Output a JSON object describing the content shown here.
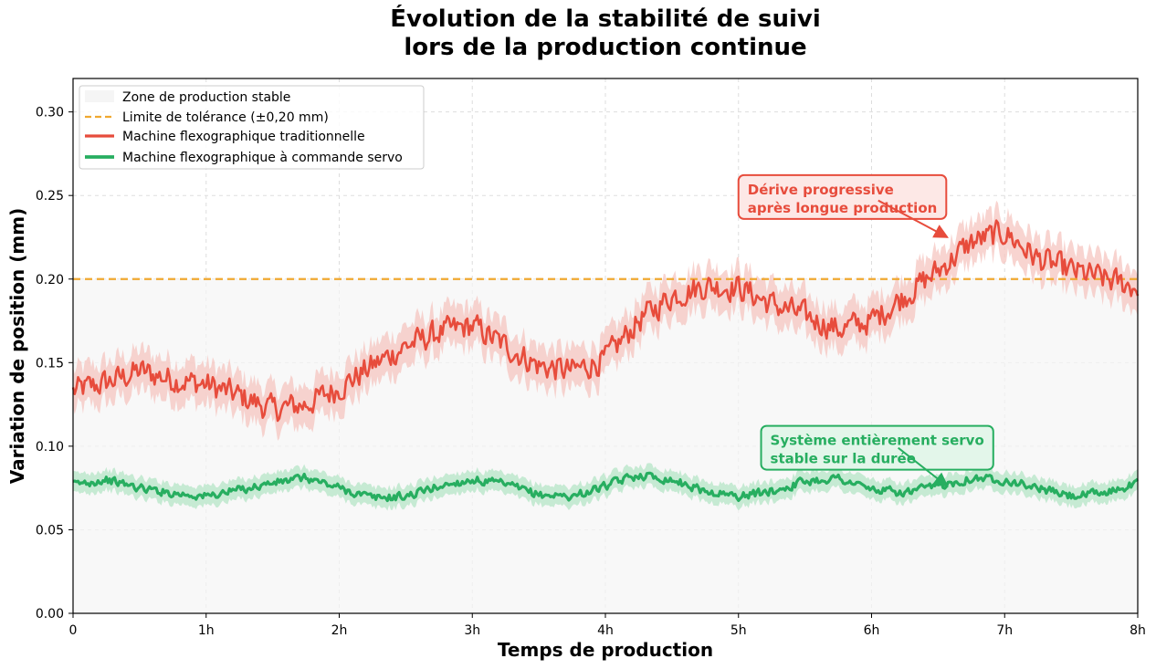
{
  "chart_data": {
    "type": "line",
    "title_lines": [
      "Évolution de la stabilité de suivi",
      "lors de la production continue"
    ],
    "xlabel": "Temps de production",
    "ylabel": "Variation de position (mm)",
    "xlim": [
      0,
      8
    ],
    "ylim": [
      0,
      0.32
    ],
    "x_ticks": [
      {
        "value": 0,
        "label": "0"
      },
      {
        "value": 1,
        "label": "1h"
      },
      {
        "value": 2,
        "label": "2h"
      },
      {
        "value": 3,
        "label": "3h"
      },
      {
        "value": 4,
        "label": "4h"
      },
      {
        "value": 5,
        "label": "5h"
      },
      {
        "value": 6,
        "label": "6h"
      },
      {
        "value": 7,
        "label": "7h"
      },
      {
        "value": 8,
        "label": "8h"
      }
    ],
    "y_ticks": [
      {
        "value": 0.0,
        "label": "0.00"
      },
      {
        "value": 0.05,
        "label": "0.05"
      },
      {
        "value": 0.1,
        "label": "0.10"
      },
      {
        "value": 0.15,
        "label": "0.15"
      },
      {
        "value": 0.2,
        "label": "0.20"
      },
      {
        "value": 0.25,
        "label": "0.25"
      },
      {
        "value": 0.3,
        "label": "0.30"
      }
    ],
    "grid": true,
    "legend_position": "top-left",
    "stable_zone": {
      "name": "Zone de production stable",
      "y_range": [
        0,
        0.2
      ],
      "color": "#f5f5f5"
    },
    "tolerance": {
      "name": "Limite de tolérance (±0,20 mm)",
      "value": 0.2,
      "color": "#f0a830"
    },
    "series": [
      {
        "name": "Machine flexographique traditionnelle",
        "color": "#e74c3c",
        "band_color": "#f5c6c0",
        "band_halfwidth": 0.012,
        "x": [
          0,
          0.25,
          0.5,
          0.75,
          1,
          1.25,
          1.5,
          1.75,
          2,
          2.25,
          2.5,
          2.75,
          3,
          3.25,
          3.5,
          3.75,
          4,
          4.25,
          4.5,
          4.75,
          5,
          5.25,
          5.5,
          5.75,
          6,
          6.25,
          6.5,
          6.75,
          7,
          7.25,
          7.5,
          7.75,
          8
        ],
        "y": [
          0.133,
          0.138,
          0.145,
          0.14,
          0.137,
          0.13,
          0.122,
          0.125,
          0.135,
          0.148,
          0.16,
          0.168,
          0.172,
          0.16,
          0.148,
          0.145,
          0.152,
          0.175,
          0.19,
          0.196,
          0.195,
          0.185,
          0.178,
          0.17,
          0.175,
          0.19,
          0.205,
          0.222,
          0.228,
          0.212,
          0.205,
          0.2,
          0.195
        ],
        "noise_amplitude": 0.011
      },
      {
        "name": "Machine flexographique à commande servo",
        "color": "#27ae60",
        "band_color": "#b5e6c7",
        "band_halfwidth": 0.006,
        "x": [
          0,
          0.25,
          0.5,
          0.75,
          1,
          1.25,
          1.5,
          1.75,
          2,
          2.25,
          2.5,
          2.75,
          3,
          3.25,
          3.5,
          3.75,
          4,
          4.25,
          4.5,
          4.75,
          5,
          5.25,
          5.5,
          5.75,
          6,
          6.25,
          6.5,
          6.75,
          7,
          7.25,
          7.5,
          7.75,
          8
        ],
        "y": [
          0.077,
          0.08,
          0.075,
          0.072,
          0.07,
          0.074,
          0.078,
          0.081,
          0.075,
          0.069,
          0.07,
          0.076,
          0.08,
          0.077,
          0.071,
          0.07,
          0.076,
          0.083,
          0.08,
          0.073,
          0.07,
          0.073,
          0.079,
          0.081,
          0.074,
          0.072,
          0.076,
          0.081,
          0.08,
          0.075,
          0.07,
          0.072,
          0.078
        ],
        "noise_amplitude": 0.0035
      }
    ],
    "annotations": [
      {
        "lines": [
          "Dérive progressive",
          "après longue production"
        ],
        "color": "#e74c3c",
        "bg": "#fde8e6",
        "box_anchor": {
          "x": 5.0,
          "y": 0.26
        },
        "arrow_to": {
          "x": 6.57,
          "y": 0.225
        },
        "arrow_from": {
          "x": 6.05,
          "y": 0.247
        }
      },
      {
        "lines": [
          "Système entièrement servo",
          "stable sur la durée"
        ],
        "color": "#27ae60",
        "bg": "#e3f6ea",
        "box_anchor": {
          "x": 5.17,
          "y": 0.11
        },
        "arrow_to": {
          "x": 6.57,
          "y": 0.076
        },
        "arrow_from": {
          "x": 6.2,
          "y": 0.099
        }
      }
    ]
  }
}
